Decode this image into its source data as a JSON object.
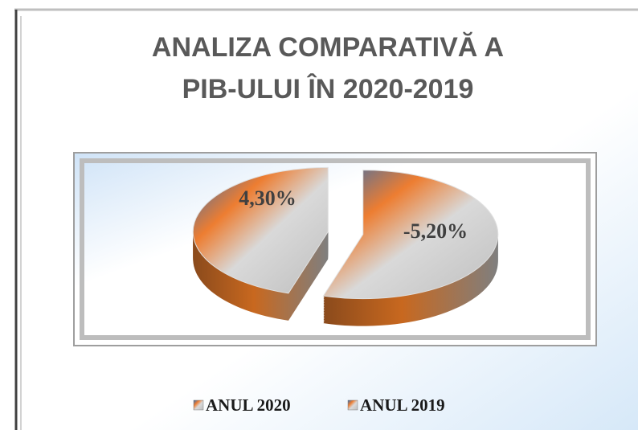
{
  "chart_data": {
    "type": "pie",
    "title": "ANALIZA COMPARATIVĂ A PIB-ULUI ÎN 2020-2019",
    "categories": [
      "ANUL 2020",
      "ANUL 2019"
    ],
    "values": [
      4.3,
      -5.2
    ],
    "value_labels": [
      "4,30%",
      "-5,20%"
    ],
    "legend": "bottom"
  }
}
